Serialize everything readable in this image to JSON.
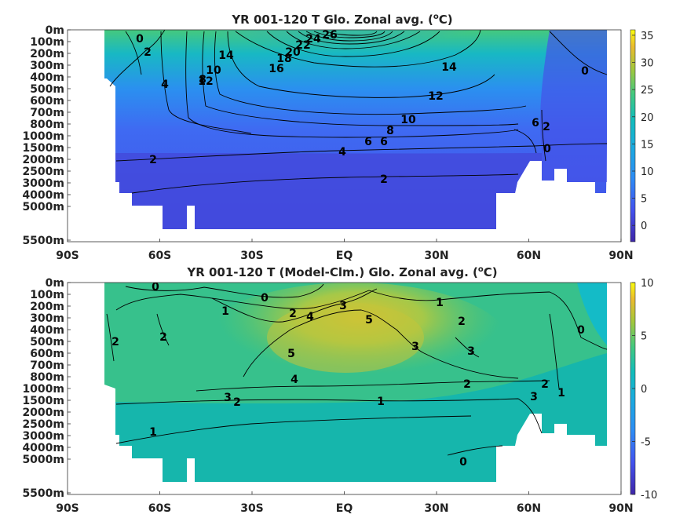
{
  "chart_data": [
    {
      "type": "heatmap",
      "title_main": "YR 001-120 T Glo. Zonal avg. (",
      "title_sup": "o",
      "title_end": "C)",
      "x_tick_labels": [
        "90S",
        "60S",
        "30S",
        "EQ",
        "30N",
        "60N",
        "90N"
      ],
      "y_tick_labels": [
        "0m",
        "100m",
        "200m",
        "300m",
        "400m",
        "500m",
        "600m",
        "700m",
        "800m",
        "1000m",
        "1500m",
        "2000m",
        "2500m",
        "3000m",
        "4000m",
        "5000m",
        "5500m"
      ],
      "colorbar_ticks": [
        "35",
        "30",
        "25",
        "20",
        "15",
        "10",
        "5",
        "0"
      ],
      "colorbar_range": [
        -3,
        36
      ],
      "contour_labels": [
        "0",
        "2",
        "4",
        "6",
        "8",
        "10",
        "12",
        "14",
        "16",
        "18",
        "20",
        "22",
        "24",
        "26",
        "12",
        "14",
        "10",
        "8",
        "6",
        "4",
        "2",
        "2",
        "0",
        "0",
        "6",
        "2"
      ]
    },
    {
      "type": "heatmap",
      "title_main": "YR 001-120 T (Model-Clm.) Glo. Zonal avg. (",
      "title_sup": "o",
      "title_end": "C)",
      "x_tick_labels": [
        "90S",
        "60S",
        "30S",
        "EQ",
        "30N",
        "60N",
        "90N"
      ],
      "y_tick_labels": [
        "0m",
        "100m",
        "200m",
        "300m",
        "400m",
        "500m",
        "600m",
        "700m",
        "800m",
        "1000m",
        "1500m",
        "2000m",
        "2500m",
        "3000m",
        "4000m",
        "5000m",
        "5500m"
      ],
      "colorbar_ticks": [
        "10",
        "5",
        "0",
        "-5",
        "-10"
      ],
      "colorbar_range": [
        -10,
        10
      ],
      "contour_labels": [
        "0",
        "0",
        "1",
        "2",
        "4",
        "3",
        "5",
        "5",
        "4",
        "3",
        "2",
        "1",
        "2",
        "3",
        "2",
        "2",
        "3",
        "1",
        "2",
        "1",
        "0",
        "1",
        "3",
        "2",
        "0"
      ]
    }
  ]
}
